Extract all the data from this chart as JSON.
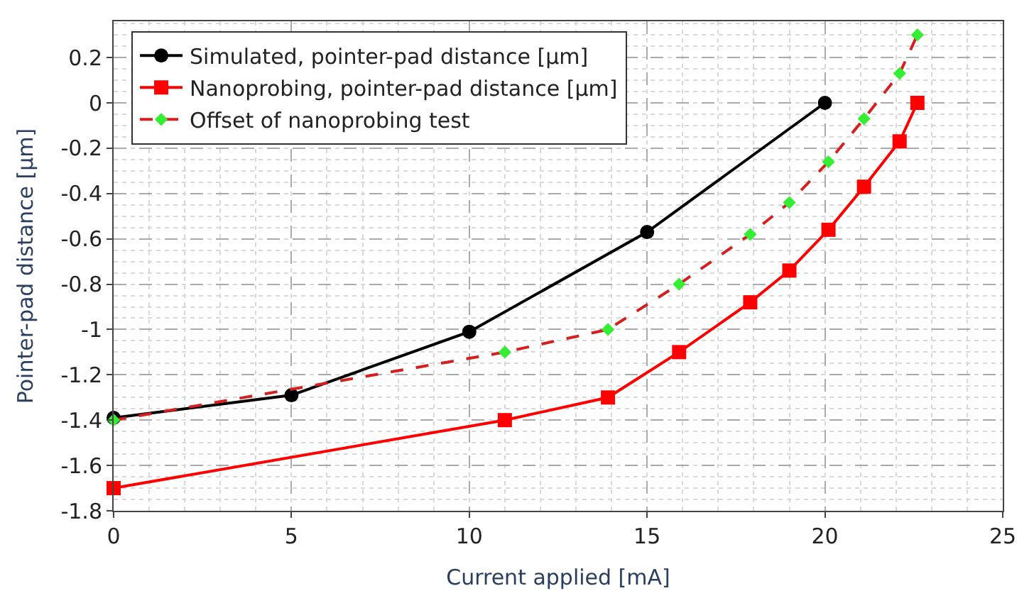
{
  "chart_data": {
    "type": "line",
    "xlabel": "Current applied [mA]",
    "ylabel": "Pointer-pad distance [µm]",
    "xlim": [
      0,
      25
    ],
    "xticks": [
      0,
      5,
      10,
      15,
      20,
      25
    ],
    "ylim": [
      -1.8,
      0.36
    ],
    "yticks": [
      -1.8,
      -1.6,
      -1.4,
      -1.2,
      -1,
      -0.8,
      -0.6,
      -0.4,
      -0.2,
      0,
      0.2
    ],
    "grid": true,
    "legend": "top left",
    "series": [
      {
        "name": "Simulated, pointer-pad distance [µm]",
        "color": "#000000",
        "marker": "circle",
        "line_style": "solid",
        "x": [
          0,
          5,
          10,
          15,
          20
        ],
        "values": [
          -1.39,
          -1.29,
          -1.01,
          -0.57,
          0
        ]
      },
      {
        "name": "Nanoprobing, pointer-pad distance [µm]",
        "color": "#ff0000",
        "marker": "square",
        "line_style": "solid",
        "x": [
          0,
          11,
          13.9,
          15.9,
          17.9,
          19,
          20.1,
          21.1,
          22.1,
          22.6
        ],
        "values": [
          -1.7,
          -1.4,
          -1.3,
          -1.1,
          -0.88,
          -0.74,
          -0.56,
          -0.37,
          -0.17,
          0
        ]
      },
      {
        "name": "Offset of nanoprobing test",
        "color": "#d42020",
        "colors": [
          "#33ee33",
          "#33ee33",
          "#33ee33",
          "#33ee33",
          "#33ee33",
          "#33ee33",
          "#33ee33",
          "#33ee33",
          "#33ee33",
          "#33ee33"
        ],
        "marker": "diamond",
        "line_style": "dashed",
        "x": [
          0,
          11,
          13.9,
          15.9,
          17.9,
          19,
          20.1,
          21.1,
          22.1,
          22.6
        ],
        "values": [
          -1.4,
          -1.1,
          -1.0,
          -0.8,
          -0.58,
          -0.44,
          -0.26,
          -0.07,
          0.13,
          0.3
        ]
      }
    ]
  }
}
